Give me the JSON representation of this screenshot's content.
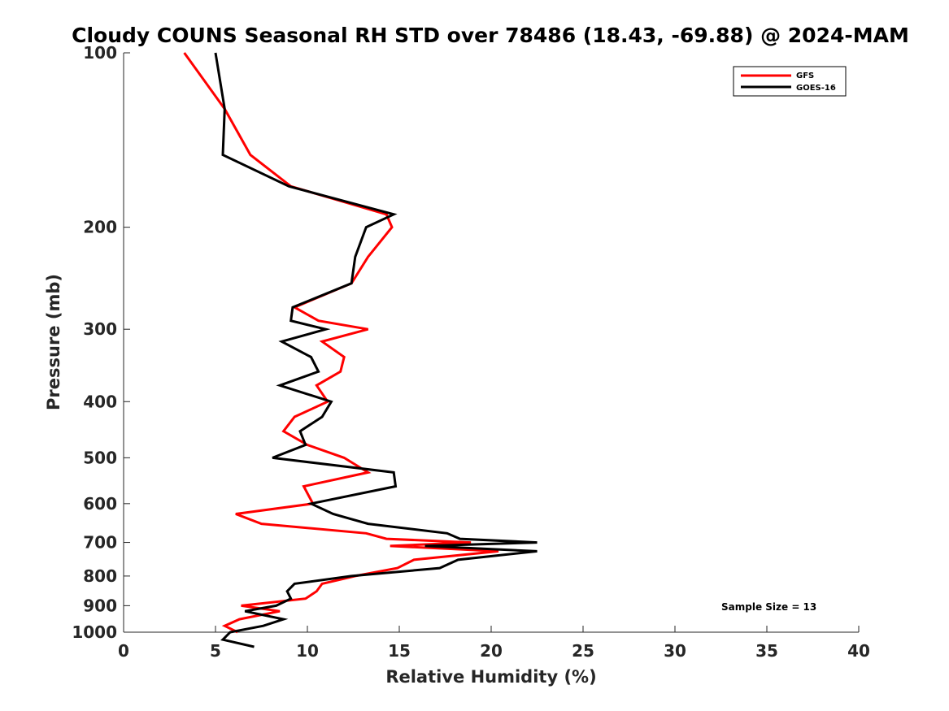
{
  "chart_data": {
    "type": "line",
    "title": "Cloudy COUNS Seasonal RH STD over 78486 (18.43, -69.88) @ 2024-MAM",
    "xlabel": "Relative Humidity (%)",
    "ylabel": "Pressure (mb)",
    "xlim": [
      0,
      40
    ],
    "ylim": [
      100,
      1000
    ],
    "yscale": "log",
    "y_reversed": true,
    "grid": false,
    "xticks": [
      "0",
      "5",
      "10",
      "15",
      "20",
      "25",
      "30",
      "35",
      "40"
    ],
    "yticks": [
      "100",
      "200",
      "300",
      "400",
      "500",
      "600",
      "700",
      "800",
      "900",
      "1000"
    ],
    "legend_position": "top-right",
    "annotation": "Sample Size = 13",
    "series": [
      {
        "name": "GFS",
        "color": "#ff0000",
        "points": [
          [
            3.3,
            100
          ],
          [
            5.5,
            125
          ],
          [
            6.9,
            150
          ],
          [
            9.1,
            170
          ],
          [
            14.3,
            190
          ],
          [
            14.6,
            200
          ],
          [
            13.3,
            225
          ],
          [
            12.4,
            250
          ],
          [
            9.3,
            275
          ],
          [
            10.6,
            290
          ],
          [
            13.3,
            300
          ],
          [
            10.8,
            315
          ],
          [
            12.0,
            335
          ],
          [
            11.8,
            355
          ],
          [
            10.5,
            375
          ],
          [
            11.1,
            400
          ],
          [
            9.3,
            425
          ],
          [
            8.7,
            450
          ],
          [
            10.0,
            475
          ],
          [
            12.0,
            500
          ],
          [
            13.3,
            530
          ],
          [
            9.8,
            560
          ],
          [
            10.3,
            600
          ],
          [
            6.1,
            625
          ],
          [
            7.5,
            650
          ],
          [
            13.2,
            675
          ],
          [
            14.3,
            690
          ],
          [
            18.9,
            700
          ],
          [
            14.5,
            710
          ],
          [
            20.4,
            725
          ],
          [
            15.8,
            750
          ],
          [
            14.9,
            775
          ],
          [
            12.6,
            800
          ],
          [
            10.8,
            825
          ],
          [
            10.5,
            850
          ],
          [
            9.9,
            875
          ],
          [
            6.4,
            900
          ],
          [
            8.5,
            920
          ],
          [
            6.3,
            950
          ],
          [
            5.5,
            975
          ],
          [
            6.2,
            1000
          ]
        ]
      },
      {
        "name": "GOES-16",
        "color": "#000000",
        "points": [
          [
            5.0,
            100
          ],
          [
            5.5,
            125
          ],
          [
            5.4,
            150
          ],
          [
            9.0,
            170
          ],
          [
            14.7,
            190
          ],
          [
            13.2,
            200
          ],
          [
            12.6,
            225
          ],
          [
            12.4,
            250
          ],
          [
            9.2,
            275
          ],
          [
            9.1,
            290
          ],
          [
            11.0,
            300
          ],
          [
            8.6,
            315
          ],
          [
            10.2,
            335
          ],
          [
            10.6,
            355
          ],
          [
            8.5,
            375
          ],
          [
            11.3,
            400
          ],
          [
            10.8,
            425
          ],
          [
            9.6,
            450
          ],
          [
            9.9,
            475
          ],
          [
            8.1,
            500
          ],
          [
            14.7,
            530
          ],
          [
            14.8,
            560
          ],
          [
            10.2,
            600
          ],
          [
            11.4,
            625
          ],
          [
            13.3,
            650
          ],
          [
            17.6,
            675
          ],
          [
            18.3,
            690
          ],
          [
            22.5,
            700
          ],
          [
            16.4,
            710
          ],
          [
            22.5,
            725
          ],
          [
            18.2,
            750
          ],
          [
            17.2,
            775
          ],
          [
            12.4,
            800
          ],
          [
            9.3,
            825
          ],
          [
            8.9,
            850
          ],
          [
            9.1,
            875
          ],
          [
            8.3,
            900
          ],
          [
            6.6,
            920
          ],
          [
            8.7,
            950
          ],
          [
            7.6,
            975
          ],
          [
            5.8,
            1000
          ],
          [
            5.4,
            1030
          ],
          [
            7.1,
            1060
          ]
        ]
      }
    ]
  }
}
